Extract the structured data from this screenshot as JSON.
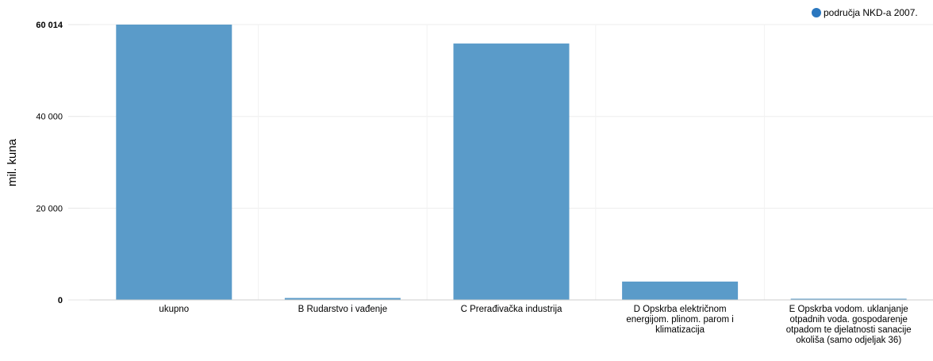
{
  "chart_data": {
    "type": "bar",
    "ylabel": "mil. kuna",
    "ylim": [
      0,
      60014
    ],
    "yticks": [
      {
        "value": 0,
        "label": "0",
        "bold": true
      },
      {
        "value": 20000,
        "label": "20 000",
        "bold": false
      },
      {
        "value": 40000,
        "label": "40 000",
        "bold": false
      },
      {
        "value": 60014,
        "label": "60 014",
        "bold": true
      }
    ],
    "categories": [
      "ukupno",
      "B Rudarstvo i vađenje",
      "C Prerađivačka industrija",
      "D Opskrba električnom energijom. plinom. parom i klimatizacija",
      "E Opskrba vodom. uklanjanje otpadnih voda. gospodarenje otpadom te djelatnosti sanacije okoliša (samo odjeljak 36)"
    ],
    "series": [
      {
        "name": "područja NKD-a 2007.",
        "color": "#5a9bc9",
        "values": [
          60014,
          420,
          55900,
          4000,
          250
        ]
      }
    ],
    "legend": {
      "label": "područja NKD-a 2007.",
      "marker_color": "#2a77bf",
      "position": "top-right"
    },
    "grid": true
  }
}
